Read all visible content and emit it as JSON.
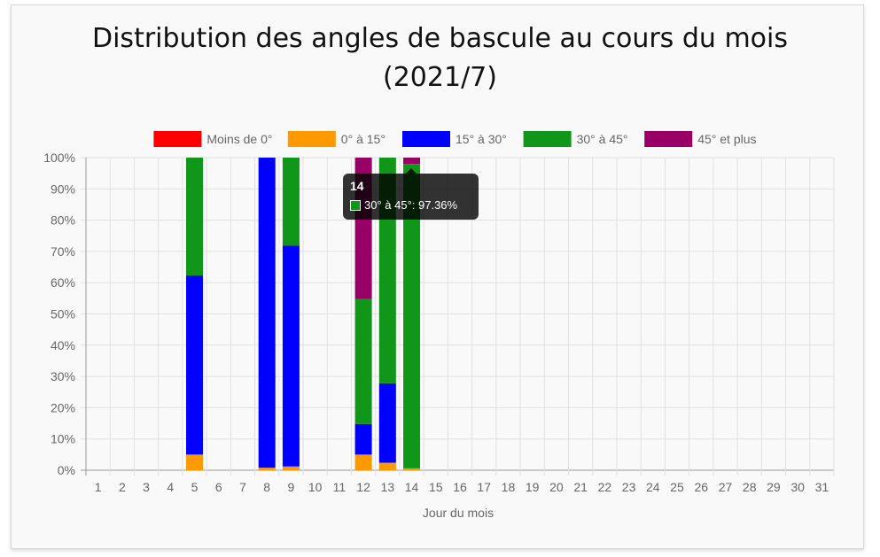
{
  "chart_data": {
    "type": "bar",
    "stacked": true,
    "title": [
      "Distribution des angles de bascule au cours du mois",
      "(2021/7)"
    ],
    "xlabel": "Jour du mois",
    "ylabel": "",
    "categories": [
      "1",
      "2",
      "3",
      "4",
      "5",
      "6",
      "7",
      "8",
      "9",
      "10",
      "11",
      "12",
      "13",
      "14",
      "15",
      "16",
      "17",
      "18",
      "19",
      "20",
      "21",
      "22",
      "23",
      "24",
      "25",
      "26",
      "27",
      "28",
      "29",
      "30",
      "31"
    ],
    "ylim": [
      0,
      100
    ],
    "yticks": [
      "0%",
      "10%",
      "20%",
      "30%",
      "40%",
      "50%",
      "60%",
      "70%",
      "80%",
      "90%",
      "100%"
    ],
    "grid": true,
    "legend_position": "top",
    "series": [
      {
        "name": "Moins de 0°",
        "color": "#ff0000",
        "values": [
          0,
          0,
          0,
          0,
          0,
          0,
          0,
          0,
          0,
          0,
          0,
          0,
          0,
          0,
          0,
          0,
          0,
          0,
          0,
          0,
          0,
          0,
          0,
          0,
          0,
          0,
          0,
          0,
          0,
          0,
          0
        ]
      },
      {
        "name": "0° à 15°",
        "color": "#ff9900",
        "values": [
          0,
          0,
          0,
          0,
          5,
          0,
          0,
          0.8,
          1.2,
          0,
          0,
          5,
          2.4,
          0.6,
          0,
          0,
          0,
          0,
          0,
          0,
          0,
          0,
          0,
          0,
          0,
          0,
          0,
          0,
          0,
          0,
          0
        ]
      },
      {
        "name": "15° à 30°",
        "color": "#0000ff",
        "values": [
          0,
          0,
          0,
          0,
          57.3,
          0,
          0,
          99.2,
          70.7,
          0,
          0,
          9.8,
          25.4,
          0,
          0,
          0,
          0,
          0,
          0,
          0,
          0,
          0,
          0,
          0,
          0,
          0,
          0,
          0,
          0,
          0,
          0
        ]
      },
      {
        "name": "30° à 45°",
        "color": "#109618",
        "values": [
          0,
          0,
          0,
          0,
          37.7,
          0,
          0,
          0,
          28.1,
          0,
          0,
          40,
          72.2,
          97.36,
          0,
          0,
          0,
          0,
          0,
          0,
          0,
          0,
          0,
          0,
          0,
          0,
          0,
          0,
          0,
          0,
          0
        ]
      },
      {
        "name": "45° et plus",
        "color": "#990066",
        "values": [
          0,
          0,
          0,
          0,
          0,
          0,
          0,
          0,
          0,
          0,
          0,
          45.2,
          0,
          2.04,
          0,
          0,
          0,
          0,
          0,
          0,
          0,
          0,
          0,
          0,
          0,
          0,
          0,
          0,
          0,
          0,
          0
        ]
      }
    ]
  },
  "tooltip": {
    "title": "14",
    "label": "30° à 45°: 97.36%",
    "swatch_color": "#109618"
  }
}
